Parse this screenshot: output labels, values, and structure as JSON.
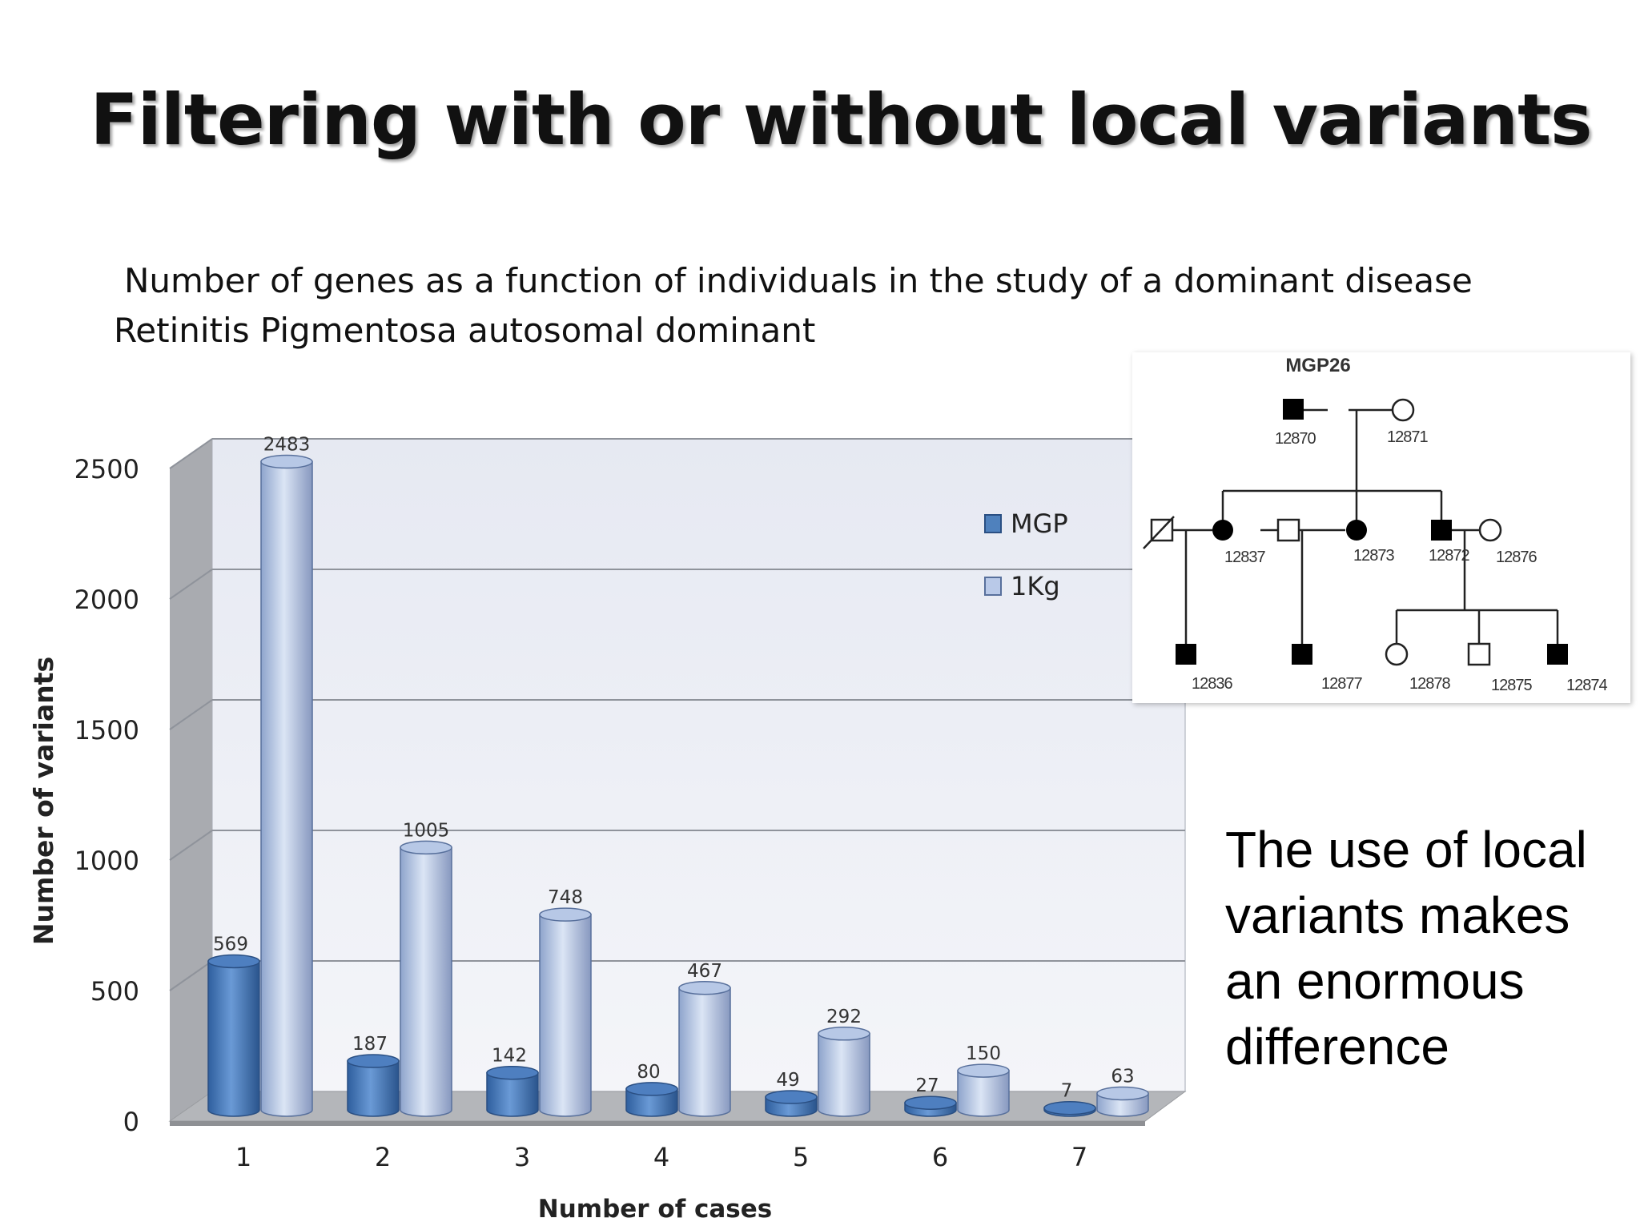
{
  "slide": {
    "title": "Filtering with or without local variants",
    "subtitle_line1": "Number of genes as a function of individuals in the study of a dominant disease",
    "subtitle_line2": "Retinitis Pigmentosa autosomal dominant",
    "callout": "The use of local variants makes an enormous difference"
  },
  "chart_data": {
    "type": "bar",
    "title": "",
    "xlabel": "Number of cases",
    "ylabel": "Number of variants",
    "categories": [
      "1",
      "2",
      "3",
      "4",
      "5",
      "6",
      "7"
    ],
    "series": [
      {
        "name": "MGP",
        "values": [
          569,
          187,
          142,
          80,
          49,
          27,
          7
        ]
      },
      {
        "name": "1Kg",
        "values": [
          2483,
          1005,
          748,
          467,
          292,
          150,
          63
        ]
      }
    ],
    "ylim": [
      0,
      2500
    ],
    "yticks": [
      0,
      500,
      1000,
      1500,
      2000,
      2500
    ],
    "grid": true,
    "legend_position": "top-right",
    "colors": {
      "MGP": "#4f81bd",
      "1Kg": "#b9c9e8"
    }
  },
  "pedigree": {
    "family_id": "MGP26",
    "ids": {
      "i12870": "12870",
      "i12871": "12871",
      "i12837": "12837",
      "i12873": "12873",
      "i12872": "12872",
      "i12876": "12876",
      "i12836": "12836",
      "i12877": "12877",
      "i12878": "12878",
      "i12875": "12875",
      "i12874": "12874"
    }
  }
}
